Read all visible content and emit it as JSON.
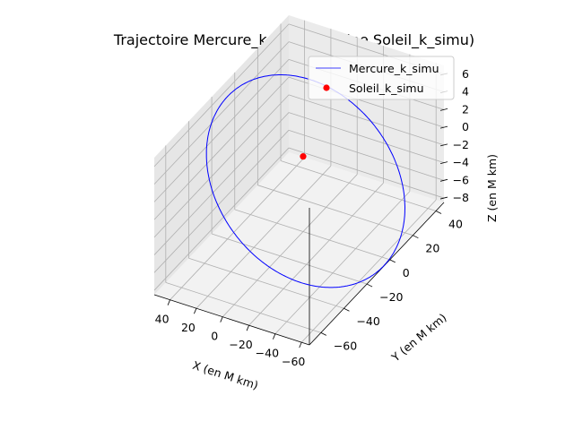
{
  "chart_data": {
    "type": "line3d",
    "title": "Trajectoire Mercure_k_simu (origine Soleil_k_simu)",
    "xlabel": "X (en M km)",
    "ylabel": "Y (en M km)",
    "zlabel": "Z (en M km)",
    "x_ticks": [
      "−60",
      "−40",
      "−20",
      "0",
      "20",
      "40"
    ],
    "y_ticks": [
      "−60",
      "−40",
      "−20",
      "0",
      "20",
      "40"
    ],
    "z_ticks": [
      "−8",
      "−6",
      "−4",
      "−2",
      "0",
      "2",
      "4",
      "6"
    ],
    "xlim": [
      -66,
      52
    ],
    "ylim": [
      -70,
      47
    ],
    "zlim": [
      -8.5,
      7
    ],
    "grid": true,
    "legend_position": "top-right",
    "series": [
      {
        "name": "Mercure_k_simu",
        "kind": "line",
        "color": "#0000ff",
        "orbit": {
          "center": [
            -11.9,
            -11.4,
            -0.65
          ],
          "semi_axis_1": [
            46.6,
            47.7,
            3.0
          ],
          "semi_axis_2": [
            40.6,
            -39.7,
            5.8
          ]
        }
      },
      {
        "name": "Soleil_k_simu",
        "kind": "scatter",
        "color": "#ff0000",
        "points": [
          [
            0,
            0,
            0
          ]
        ]
      }
    ]
  }
}
